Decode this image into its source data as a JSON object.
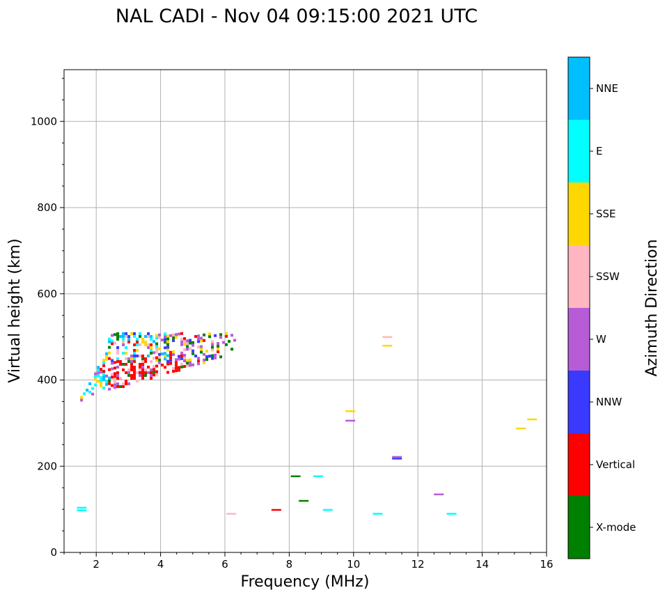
{
  "chart_data": {
    "type": "scatter",
    "title": "NAL CADI - Nov 04 09:15:00 2021 UTC",
    "xlabel": "Frequency (MHz)",
    "ylabel": "Virtual height (km)",
    "xlim": [
      1,
      16
    ],
    "ylim": [
      0,
      1120
    ],
    "xticks": [
      2,
      4,
      6,
      8,
      10,
      12,
      14,
      16
    ],
    "yticks": [
      0,
      200,
      400,
      600,
      800,
      1000
    ],
    "grid": true,
    "colorbar": {
      "label": "Azimuth Direction",
      "categories": [
        {
          "name": "X-mode",
          "color": "#008000"
        },
        {
          "name": "Vertical",
          "color": "#ff0000"
        },
        {
          "name": "NNW",
          "color": "#3a3aff"
        },
        {
          "name": "W",
          "color": "#b65cd6"
        },
        {
          "name": "SSW",
          "color": "#ffb6c1"
        },
        {
          "name": "SSE",
          "color": "#ffd700"
        },
        {
          "name": "E",
          "color": "#00ffff"
        },
        {
          "name": "NNE",
          "color": "#00bfff"
        }
      ]
    },
    "main_echo": {
      "description": "F-layer echo trace with mixed azimuths",
      "f_range": [
        1.5,
        6.3
      ],
      "h_range": [
        350,
        505
      ]
    },
    "points": [
      {
        "f": 1.55,
        "h": 98,
        "dir": "E"
      },
      {
        "f": 1.55,
        "h": 104,
        "dir": "E"
      },
      {
        "f": 6.2,
        "h": 90,
        "dir": "SSW"
      },
      {
        "f": 7.6,
        "h": 99,
        "dir": "Vertical"
      },
      {
        "f": 8.2,
        "h": 177,
        "dir": "X-mode"
      },
      {
        "f": 8.45,
        "h": 120,
        "dir": "X-mode"
      },
      {
        "f": 8.9,
        "h": 177,
        "dir": "E"
      },
      {
        "f": 9.2,
        "h": 99,
        "dir": "E"
      },
      {
        "f": 9.9,
        "h": 328,
        "dir": "SSE"
      },
      {
        "f": 9.9,
        "h": 306,
        "dir": "W"
      },
      {
        "f": 10.75,
        "h": 90,
        "dir": "E"
      },
      {
        "f": 11.05,
        "h": 500,
        "dir": "SSW"
      },
      {
        "f": 11.05,
        "h": 480,
        "dir": "SSE"
      },
      {
        "f": 11.35,
        "h": 222,
        "dir": "W"
      },
      {
        "f": 11.35,
        "h": 218,
        "dir": "NNW"
      },
      {
        "f": 12.65,
        "h": 135,
        "dir": "W"
      },
      {
        "f": 13.05,
        "h": 90,
        "dir": "E"
      },
      {
        "f": 15.2,
        "h": 288,
        "dir": "SSE"
      },
      {
        "f": 15.55,
        "h": 309,
        "dir": "SSE"
      }
    ]
  }
}
